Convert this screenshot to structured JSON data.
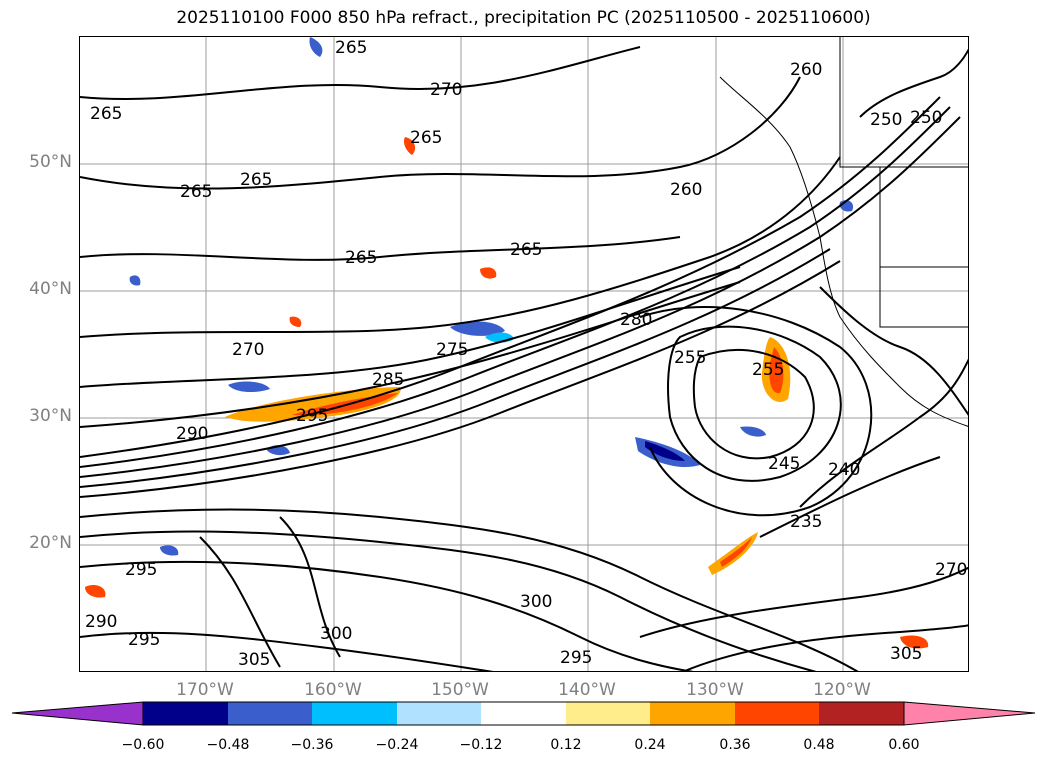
{
  "title": "2025110100 F000 850 hPa refract., precipitation PC (2025110500 - 2025110600)",
  "map": {
    "lat_labels": [
      "50°N",
      "40°N",
      "30°N",
      "20°N"
    ],
    "lon_labels": [
      "170°W",
      "160°W",
      "150°W",
      "140°W",
      "130°W",
      "120°W"
    ],
    "contour_labels": [
      "265",
      "270",
      "265",
      "265",
      "265",
      "265",
      "260",
      "250",
      "250",
      "265",
      "265",
      "260",
      "270",
      "275",
      "285",
      "295",
      "290",
      "280",
      "255",
      "255",
      "245",
      "240",
      "235",
      "295",
      "300",
      "305",
      "300",
      "295",
      "270",
      "305",
      "290",
      "295"
    ]
  },
  "colorbar": {
    "colors": [
      "#9932cc",
      "#00008b",
      "#3a5fcd",
      "#00bfff",
      "#b0e2ff",
      "#ffffff",
      "#ffec8b",
      "#ffa500",
      "#ff4500",
      "#b22222",
      "#ff82ab"
    ],
    "ticks": [
      "−0.60",
      "−0.48",
      "−0.36",
      "−0.24",
      "−0.12",
      "0.12",
      "0.24",
      "0.36",
      "0.48",
      "0.60"
    ]
  }
}
